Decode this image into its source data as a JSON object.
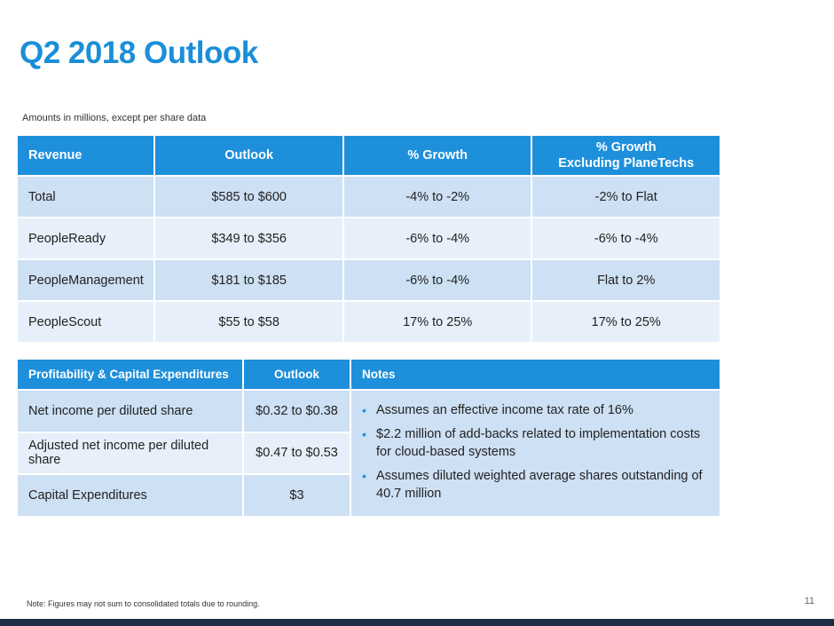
{
  "title": "Q2 2018 Outlook",
  "subtitle": "Amounts in millions, except per share data",
  "revenue_table": {
    "headers": [
      "Revenue",
      "Outlook",
      "% Growth",
      "% Growth",
      "Excluding PlaneTechs"
    ],
    "rows": [
      [
        "Total",
        "$585 to $600",
        "-4% to -2%",
        "-2% to Flat"
      ],
      [
        "PeopleReady",
        "$349 to $356",
        "-6% to -4%",
        "-6% to -4%"
      ],
      [
        "PeopleManagement",
        "$181 to $185",
        "-6% to -4%",
        "Flat to 2%"
      ],
      [
        "PeopleScout",
        "$55 to $58",
        "17% to 25%",
        "17% to 25%"
      ]
    ]
  },
  "profit_table": {
    "headers": [
      "Profitability & Capital Expenditures",
      "Outlook",
      "Notes"
    ],
    "rows": [
      [
        "Net income per diluted share",
        "$0.32 to $0.38"
      ],
      [
        "Adjusted net income per diluted share",
        "$0.47 to $0.53"
      ],
      [
        "Capital Expenditures",
        "$3"
      ]
    ],
    "notes": [
      "Assumes an effective income tax rate of 16%",
      "$2.2 million of add-backs related to implementation costs for cloud-based systems",
      "Assumes diluted weighted average shares outstanding of 40.7 million"
    ],
    "bullet": "•"
  },
  "footnote": "Note: Figures may not sum to consolidated totals due to rounding.",
  "page_number": "11",
  "colors": {
    "title": "#1a8fd8",
    "header": "#1e8fdb",
    "row_dark": "#cde0f4",
    "row_light": "#e7f0fa",
    "bottom_bar": "#1a2d45"
  }
}
